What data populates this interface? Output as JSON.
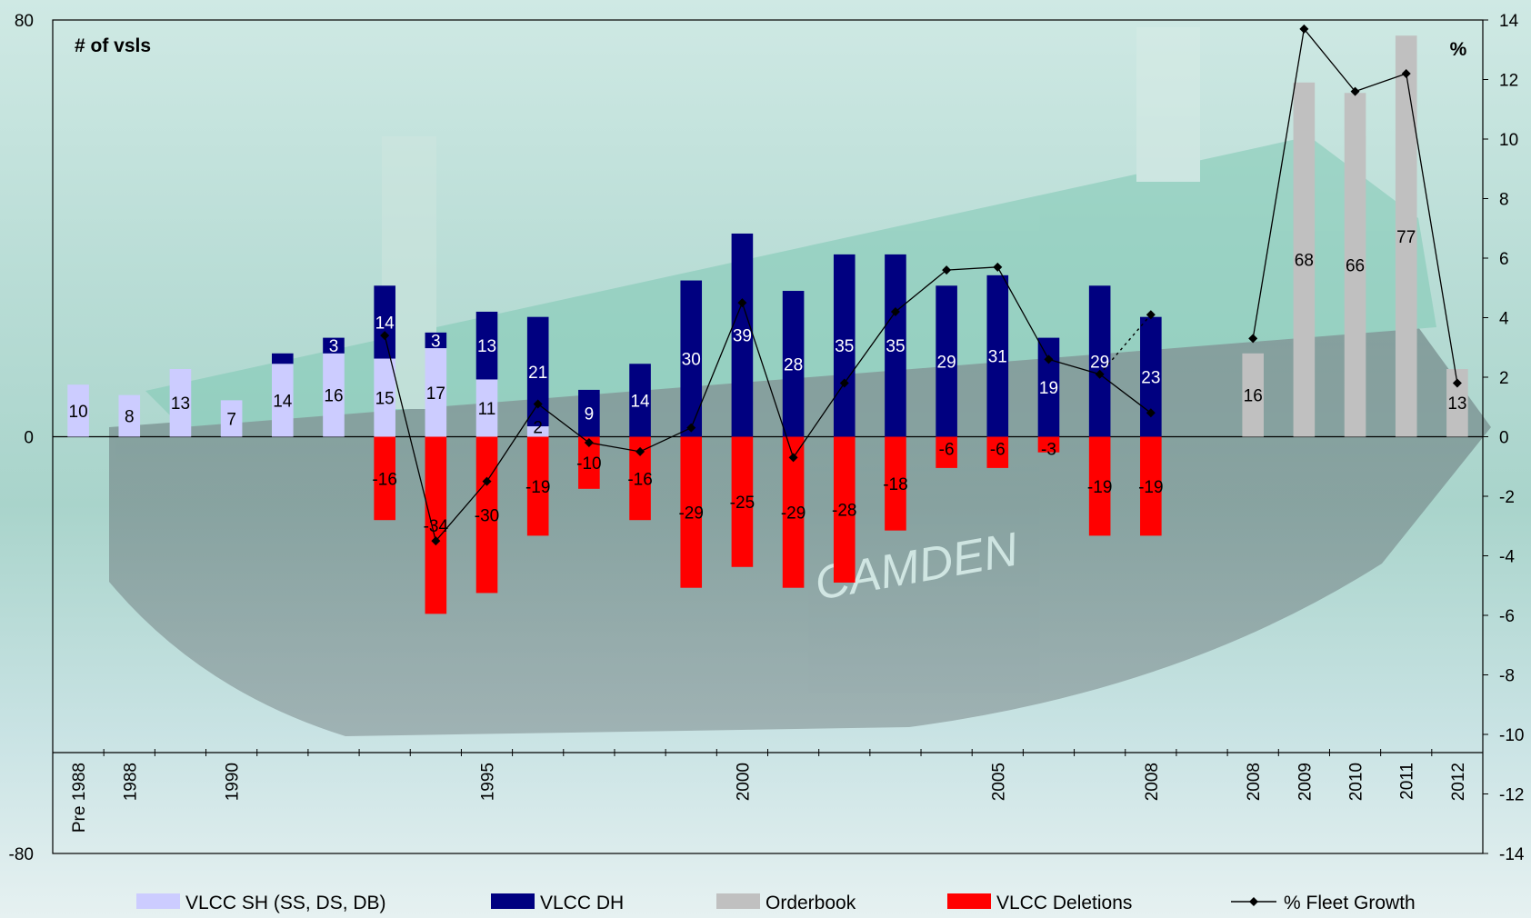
{
  "chart_data": {
    "type": "bar",
    "y_left_label": "# of vsls",
    "y_right_label": "%",
    "ylim_left": [
      -80,
      80
    ],
    "ylim_right": [
      -14,
      14
    ],
    "left_ticks": [
      "80",
      "0",
      "-80"
    ],
    "right_ticks": [
      "14",
      "12",
      "10",
      "8",
      "6",
      "4",
      "2",
      "0",
      "-2",
      "-4",
      "-6",
      "-8",
      "-10",
      "-12",
      "-14"
    ],
    "categories": [
      "Pre 1988",
      "1988",
      "",
      "1990",
      "",
      "",
      "",
      "",
      "1995",
      "",
      "",
      "",
      "",
      "2000",
      "",
      "",
      "",
      "",
      "2005",
      "",
      "",
      "2008",
      "",
      "2008",
      "2009",
      "2010",
      "2011",
      "2012"
    ],
    "series": [
      {
        "name": "VLCC SH (SS, DS, DB)",
        "color": "#ccccff",
        "values": [
          10,
          8,
          13,
          7,
          14,
          16,
          15,
          17,
          11,
          2,
          null,
          null,
          null,
          null,
          null,
          null,
          null,
          null,
          null,
          null,
          null,
          null,
          null,
          null,
          null,
          null,
          null,
          null
        ]
      },
      {
        "name": "VLCC DH",
        "color": "#000080",
        "values": [
          null,
          null,
          null,
          null,
          2,
          3,
          14,
          3,
          13,
          21,
          9,
          14,
          30,
          39,
          28,
          35,
          35,
          29,
          31,
          19,
          29,
          23,
          null,
          null,
          null,
          null,
          null,
          null
        ]
      },
      {
        "name": "Orderbook",
        "color": "#c0c0c0",
        "values": [
          null,
          null,
          null,
          null,
          null,
          null,
          null,
          null,
          null,
          null,
          null,
          null,
          null,
          null,
          null,
          null,
          null,
          null,
          null,
          null,
          null,
          null,
          null,
          16,
          68,
          66,
          77,
          13
        ]
      },
      {
        "name": "VLCC Deletions",
        "color": "#ff0000",
        "values": [
          null,
          null,
          null,
          null,
          null,
          null,
          -16,
          -34,
          -30,
          -19,
          -10,
          -16,
          -29,
          -25,
          -29,
          -28,
          -18,
          -6,
          -6,
          -3,
          -19,
          -19,
          null,
          null,
          null,
          null,
          null,
          null
        ]
      },
      {
        "name": "% Fleet Growth",
        "color": "#000000",
        "values": [
          null,
          null,
          null,
          null,
          null,
          null,
          3.4,
          -3.5,
          -1.5,
          1.1,
          -0.2,
          -0.5,
          0.3,
          4.5,
          -0.7,
          1.8,
          4.2,
          5.6,
          5.7,
          2.6,
          2.1,
          0.8,
          null,
          3.3,
          13.7,
          11.6,
          12.2,
          1.8
        ]
      }
    ],
    "sh_labels": [
      "10",
      "8",
      "13",
      "7",
      "14",
      "16",
      "15",
      "17",
      "11",
      "2",
      "",
      "",
      "",
      "",
      "",
      "",
      "",
      "",
      "",
      "",
      "",
      "",
      "",
      "",
      "",
      "",
      "",
      ""
    ],
    "dh_labels": [
      "",
      "",
      "",
      "",
      "",
      "3",
      "14",
      "3",
      "13",
      "21",
      "9",
      "14",
      "30",
      "39",
      "28",
      "35",
      "35",
      "29",
      "31",
      "19",
      "29",
      "23",
      "",
      "",
      "",
      "",
      "",
      ""
    ],
    "ob_labels": [
      "",
      "",
      "",
      "",
      "",
      "",
      "",
      "",
      "",
      "",
      "",
      "",
      "",
      "",
      "",
      "",
      "",
      "",
      "",
      "",
      "",
      "",
      "",
      "16",
      "68",
      "66",
      "77",
      "13"
    ],
    "del_labels": [
      "",
      "",
      "",
      "",
      "",
      "",
      "-16",
      "-34",
      "-30",
      "-19",
      "-10",
      "-16",
      "-29",
      "-25",
      "-29",
      "-28",
      "-18",
      "-6",
      "-6",
      "-3",
      "-19",
      "-19",
      "",
      "",
      "",
      "",
      "",
      ""
    ],
    "growth_projection_from": [
      20,
      21
    ],
    "legend": [
      "VLCC SH (SS, DS, DB)",
      "VLCC DH",
      "Orderbook",
      "VLCC Deletions",
      "% Fleet Growth"
    ],
    "legend_position": "bottom",
    "background_text": "CAMDEN",
    "grid": false
  }
}
